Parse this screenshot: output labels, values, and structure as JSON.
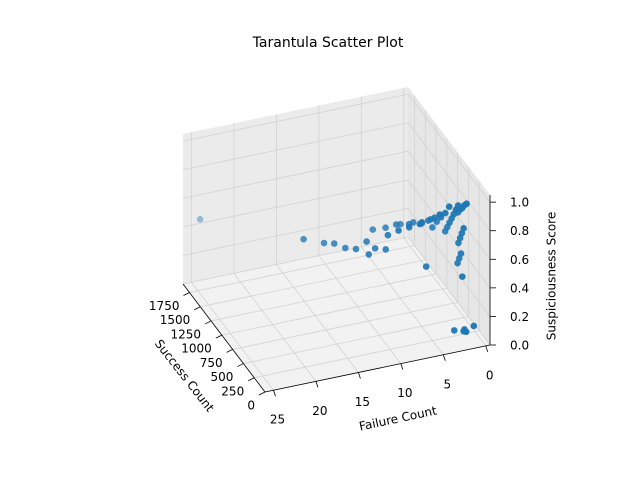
{
  "chart_data": {
    "type": "scatter3d",
    "title": "Tarantula Scatter Plot",
    "xlabel": "Success Count",
    "ylabel": "Failure Count",
    "zlabel": "Suspiciousness Score",
    "color": "#1f77b4",
    "xlim": [
      0,
      1900
    ],
    "ylim": [
      -0.5,
      26
    ],
    "zlim": [
      0,
      1.05
    ],
    "xticks": [
      0,
      250,
      500,
      750,
      1000,
      1250,
      1500,
      1750
    ],
    "yticks": [
      0,
      5,
      10,
      15,
      20,
      25
    ],
    "zticks": [
      {
        "value": 0,
        "label": "0.0"
      },
      {
        "value": 0.2,
        "label": "0.2"
      },
      {
        "value": 0.4,
        "label": "0.4"
      },
      {
        "value": 0.6,
        "label": "0.6"
      },
      {
        "value": 0.8,
        "label": "0.8"
      },
      {
        "value": 1,
        "label": "1.0"
      }
    ],
    "grid": true,
    "x": [
      100,
      120,
      80,
      140,
      60,
      50,
      100,
      150,
      200,
      250,
      120,
      160,
      200,
      240,
      180,
      220,
      260,
      150,
      50,
      100,
      150,
      200,
      250,
      300,
      350,
      60,
      150,
      250,
      350,
      450,
      80,
      200,
      350,
      500,
      100,
      300,
      500,
      150,
      400,
      600,
      200,
      500,
      250,
      550,
      300,
      650,
      400,
      350,
      200,
      680,
      600,
      560,
      500,
      450,
      400,
      350,
      1700
    ],
    "y": [
      2,
      2,
      1,
      3,
      2,
      2,
      2,
      2,
      2,
      2,
      2,
      2,
      2,
      2,
      2,
      2,
      2,
      2,
      3,
      3,
      3,
      3,
      3,
      3,
      3,
      4,
      4,
      4,
      4,
      4,
      5,
      5,
      5,
      5,
      6,
      6,
      6,
      7,
      7,
      7,
      8,
      8,
      9,
      9,
      10,
      10,
      12,
      12,
      6,
      18,
      16,
      15,
      14,
      13,
      11,
      10,
      25
    ],
    "z": [
      0.1,
      0.08,
      0.12,
      0.09,
      0.1,
      1.0,
      0.97,
      0.93,
      0.9,
      0.86,
      0.8,
      0.75,
      0.7,
      0.65,
      0.6,
      0.55,
      0.5,
      0.45,
      1.0,
      0.95,
      0.9,
      0.85,
      0.8,
      0.75,
      0.7,
      1.0,
      0.92,
      0.85,
      0.78,
      0.7,
      0.95,
      0.88,
      0.8,
      0.72,
      0.92,
      0.82,
      0.74,
      0.88,
      0.78,
      0.7,
      0.85,
      0.75,
      0.82,
      0.72,
      0.78,
      0.68,
      0.72,
      0.65,
      0.55,
      0.7,
      0.68,
      0.68,
      0.66,
      0.66,
      0.66,
      0.66,
      0.52
    ]
  }
}
